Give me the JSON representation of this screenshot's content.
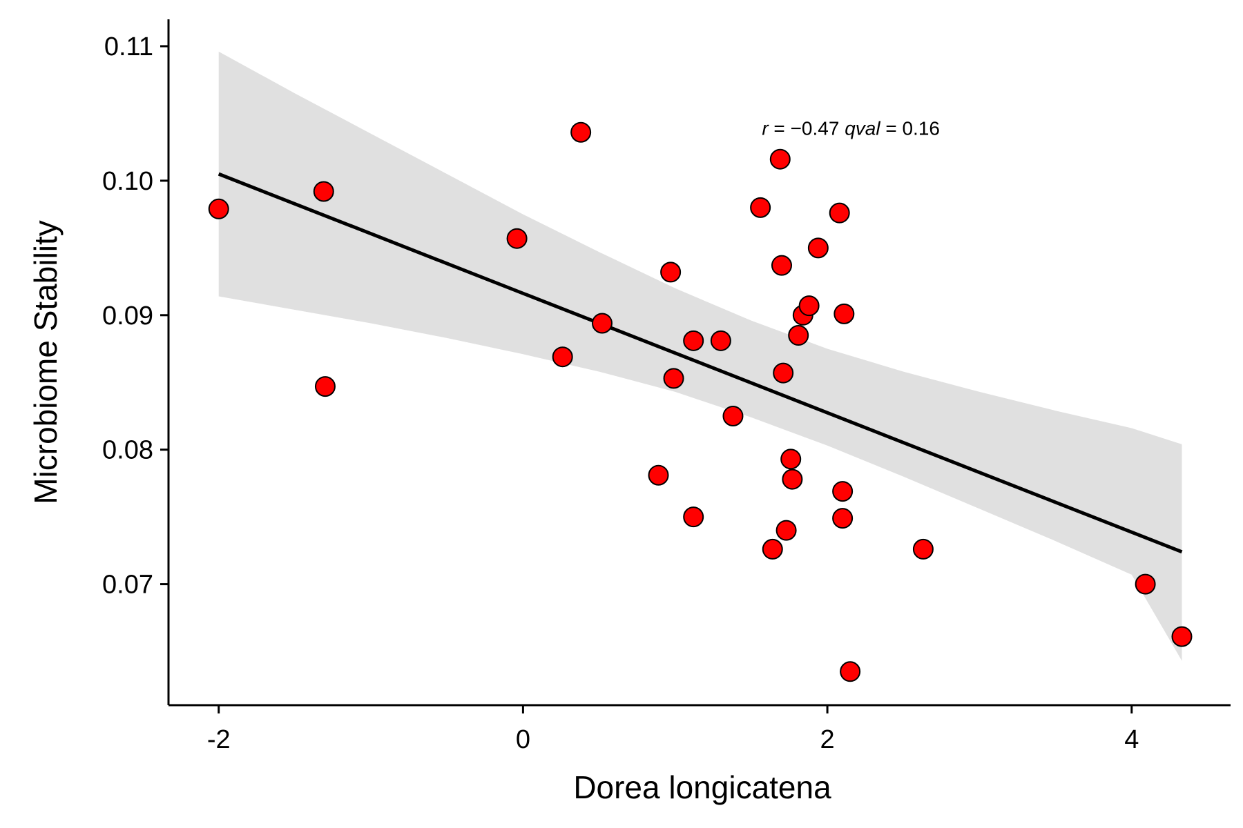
{
  "chart_data": {
    "type": "scatter",
    "xlabel": "Dorea longicatena",
    "ylabel": "Microbiome Stability",
    "xlim": [
      -2.33,
      4.65
    ],
    "ylim": [
      0.061,
      0.112
    ],
    "x_ticks": [
      {
        "value": -2,
        "label": "-2"
      },
      {
        "value": 0,
        "label": "0"
      },
      {
        "value": 2,
        "label": "2"
      },
      {
        "value": 4,
        "label": "4"
      }
    ],
    "y_ticks": [
      {
        "value": 0.07,
        "label": "0.07"
      },
      {
        "value": 0.08,
        "label": "0.08"
      },
      {
        "value": 0.09,
        "label": "0.09"
      },
      {
        "value": 0.1,
        "label": "0.10"
      },
      {
        "value": 0.11,
        "label": "0.11"
      }
    ],
    "grid": false,
    "legend": "none",
    "annotation": {
      "r_label": "r",
      "r_text": " = −0.47 ",
      "q_label": "qval",
      "q_text": " = 0.16",
      "x": 1.57,
      "y": 0.1034
    },
    "points": [
      {
        "x": -2.0,
        "y": 0.0979
      },
      {
        "x": -1.31,
        "y": 0.0992
      },
      {
        "x": -1.3,
        "y": 0.0847
      },
      {
        "x": -0.04,
        "y": 0.0957
      },
      {
        "x": 0.26,
        "y": 0.0869
      },
      {
        "x": 0.38,
        "y": 0.1036
      },
      {
        "x": 0.52,
        "y": 0.0894
      },
      {
        "x": 0.89,
        "y": 0.0781
      },
      {
        "x": 0.97,
        "y": 0.0932
      },
      {
        "x": 0.99,
        "y": 0.0853
      },
      {
        "x": 1.12,
        "y": 0.0881
      },
      {
        "x": 1.12,
        "y": 0.075
      },
      {
        "x": 1.3,
        "y": 0.0881
      },
      {
        "x": 1.38,
        "y": 0.0825
      },
      {
        "x": 1.56,
        "y": 0.098
      },
      {
        "x": 1.64,
        "y": 0.0726
      },
      {
        "x": 1.69,
        "y": 0.1016
      },
      {
        "x": 1.7,
        "y": 0.0937
      },
      {
        "x": 1.71,
        "y": 0.0857
      },
      {
        "x": 1.73,
        "y": 0.074
      },
      {
        "x": 1.76,
        "y": 0.0793
      },
      {
        "x": 1.77,
        "y": 0.0778
      },
      {
        "x": 1.81,
        "y": 0.0885
      },
      {
        "x": 1.84,
        "y": 0.09
      },
      {
        "x": 1.88,
        "y": 0.0907
      },
      {
        "x": 1.94,
        "y": 0.095
      },
      {
        "x": 2.08,
        "y": 0.0976
      },
      {
        "x": 2.11,
        "y": 0.0901
      },
      {
        "x": 2.1,
        "y": 0.0769
      },
      {
        "x": 2.1,
        "y": 0.0749
      },
      {
        "x": 2.15,
        "y": 0.0635
      },
      {
        "x": 2.63,
        "y": 0.0726
      },
      {
        "x": 4.09,
        "y": 0.07
      },
      {
        "x": 4.33,
        "y": 0.0661
      }
    ],
    "fit_line": {
      "x": [
        -2.0,
        4.33
      ],
      "y": [
        0.1005,
        0.0724
      ]
    },
    "confidence_band": {
      "x": [
        -2.0,
        -1.5,
        -1.0,
        -0.5,
        0.0,
        0.5,
        1.0,
        1.5,
        2.0,
        2.5,
        3.0,
        3.5,
        4.0,
        4.33
      ],
      "upper": [
        0.1096,
        0.1065,
        0.1035,
        0.1005,
        0.0975,
        0.0947,
        0.092,
        0.0896,
        0.0875,
        0.0858,
        0.0843,
        0.0829,
        0.0816,
        0.0804
      ],
      "lower": [
        0.0914,
        0.0904,
        0.0894,
        0.0883,
        0.0871,
        0.0858,
        0.0843,
        0.0824,
        0.0803,
        0.078,
        0.0756,
        0.0732,
        0.0707,
        0.0643
      ]
    },
    "colors": {
      "point_fill": "#ff0000",
      "point_stroke": "#000000",
      "line": "#000000",
      "band": "#e0e0e0",
      "axis": "#000000"
    }
  }
}
